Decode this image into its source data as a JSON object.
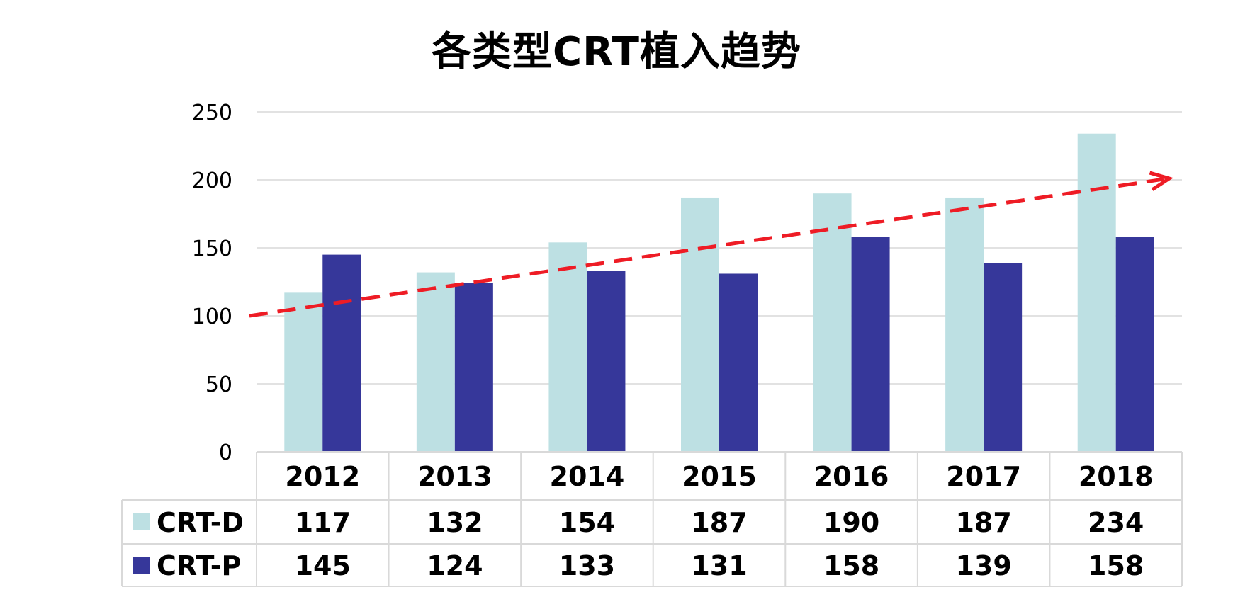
{
  "chart_data": {
    "type": "bar",
    "title": "各类型CRT植入趋势",
    "categories": [
      "2012",
      "2013",
      "2014",
      "2015",
      "2016",
      "2017",
      "2018"
    ],
    "series": [
      {
        "name": "CRT-D",
        "color": "#bde0e3",
        "values": [
          117,
          132,
          154,
          187,
          190,
          187,
          234
        ]
      },
      {
        "name": "CRT-P",
        "color": "#36379a",
        "values": [
          145,
          124,
          133,
          131,
          158,
          139,
          158
        ]
      }
    ],
    "ylim": [
      0,
      250
    ],
    "yticks": [
      0,
      50,
      100,
      150,
      200,
      250
    ],
    "grid": true,
    "legend": "data-table",
    "data_table": true,
    "trend_arrow": {
      "color": "#ee1c25",
      "style": "dashed",
      "from_value": 100,
      "to_value": 201
    }
  }
}
